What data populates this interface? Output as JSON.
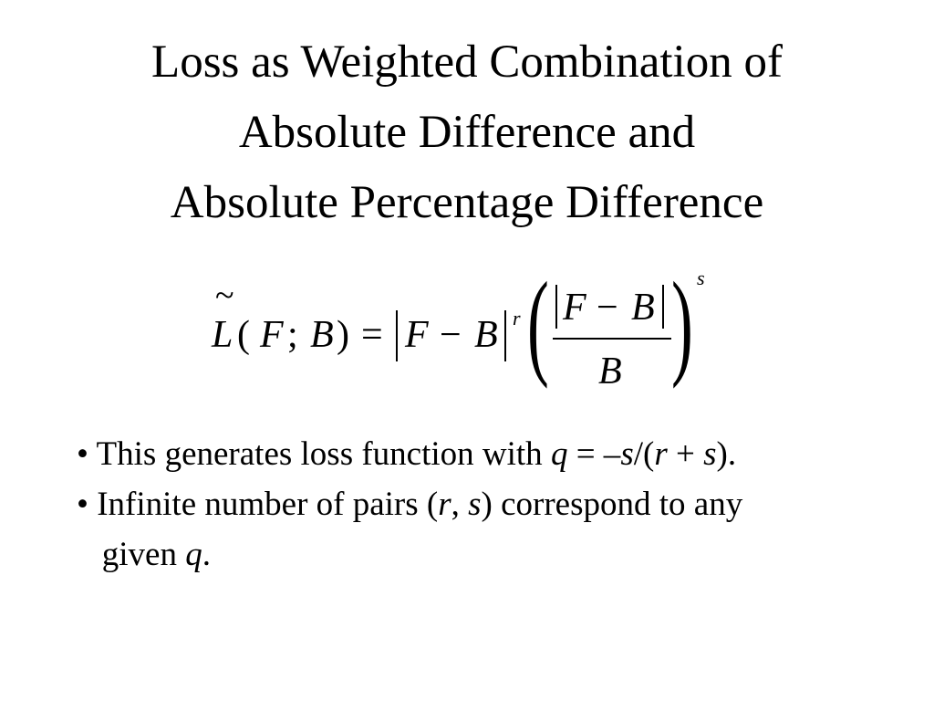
{
  "title": {
    "lines": [
      "Loss as Weighted Combination of",
      "Absolute Difference and",
      "Absolute Percentage Difference"
    ]
  },
  "formula": {
    "tilde": "~",
    "L": "L",
    "open": "(",
    "F1": "F",
    "semi": ";",
    "B1": "B",
    "close": ")",
    "eq": "=",
    "F2": "F",
    "minus1": "−",
    "B2": "B",
    "r": "r",
    "F3": "F",
    "minus2": "−",
    "B3": "B",
    "B4": "B",
    "s": "s"
  },
  "bullets": [
    {
      "bullet": "•",
      "parts": [
        {
          "text": " This generates loss function with ",
          "italic": false
        },
        {
          "text": "q",
          "italic": true
        },
        {
          "text": " = –",
          "italic": false
        },
        {
          "text": "s",
          "italic": true
        },
        {
          "text": "/(",
          "italic": false
        },
        {
          "text": "r",
          "italic": true
        },
        {
          "text": " + ",
          "italic": false
        },
        {
          "text": "s",
          "italic": true
        },
        {
          "text": ").",
          "italic": false
        }
      ]
    },
    {
      "bullet": "•",
      "parts": [
        {
          "text": " Infinite number of pairs (",
          "italic": false
        },
        {
          "text": "r",
          "italic": true
        },
        {
          "text": ", ",
          "italic": false
        },
        {
          "text": "s",
          "italic": true
        },
        {
          "text": ") correspond to any",
          "italic": false
        }
      ]
    },
    {
      "bullet": "",
      "parts": [
        {
          "text": "   given ",
          "italic": false
        },
        {
          "text": "q",
          "italic": true
        },
        {
          "text": ".",
          "italic": false
        }
      ]
    }
  ]
}
